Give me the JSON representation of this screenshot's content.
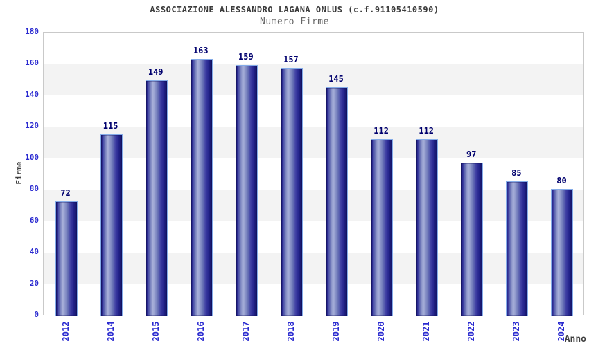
{
  "chart_data": {
    "type": "bar",
    "title": "ASSOCIAZIONE ALESSANDRO LAGANA ONLUS (c.f.91105410590)",
    "subtitle": "Numero Firme",
    "xlabel": "Anno",
    "ylabel": "Firme",
    "categories": [
      "2012",
      "2014",
      "2015",
      "2016",
      "2017",
      "2018",
      "2019",
      "2020",
      "2021",
      "2022",
      "2023",
      "2024"
    ],
    "values": [
      72,
      115,
      149,
      163,
      159,
      157,
      145,
      112,
      112,
      97,
      85,
      80
    ],
    "ylim": [
      0,
      180
    ],
    "ytick_step": 20,
    "yticks": [
      0,
      20,
      40,
      60,
      80,
      100,
      120,
      140,
      160,
      180
    ],
    "grid": true,
    "legend": false,
    "value_labels_shown": true,
    "colors": {
      "bar_dark": "#10105c",
      "bar_light": "#a9b1da",
      "bar_edge": "#84abe8",
      "value_label": "#00006e",
      "tick_label": "#2a2ad0",
      "title": "#3b3b3b",
      "subtitle": "#666666",
      "axis_title": "#3f3f3f",
      "band_gray": "#f3f3f3",
      "gridline": "#dcdcdc",
      "plot_border": "#c9c9c9",
      "background": "#ffffff"
    }
  }
}
